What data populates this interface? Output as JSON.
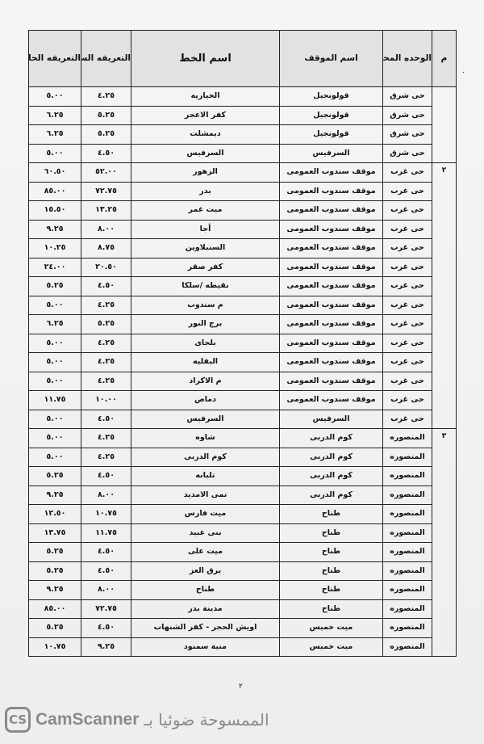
{
  "header": {
    "index": "م",
    "unit": "الوحده المحليه",
    "station": "اسم الموقف",
    "line": "اسم الخط",
    "previous_fare": "التعريفه السابقه",
    "current_fare": "التعريفه الحاليه"
  },
  "groups": [
    {
      "index": "",
      "rows": [
        {
          "unit": "حى شرق",
          "station": "قولونجيل",
          "line": "الخياريه",
          "previous": "٤.٢٥",
          "current": "٥.٠٠"
        },
        {
          "unit": "حى شرق",
          "station": "قولونجيل",
          "line": "كفر الاعجر",
          "previous": "٥.٢٥",
          "current": "٦.٢٥"
        },
        {
          "unit": "حى شرق",
          "station": "قولونجيل",
          "line": "ديمشلت",
          "previous": "٥.٢٥",
          "current": "٦.٢٥"
        },
        {
          "unit": "حى شرق",
          "station": "السرفيس",
          "line": "السرفيس",
          "previous": "٤.٥٠",
          "current": "٥.٠٠"
        }
      ]
    },
    {
      "index": "٢",
      "rows": [
        {
          "unit": "حى غرب",
          "station": "موقف سندوب العمومى",
          "line": "الزهور",
          "previous": "٥٢.٠٠",
          "current": "٦٠.٥٠"
        },
        {
          "unit": "حى غرب",
          "station": "موقف سندوب العمومى",
          "line": "بدر",
          "previous": "٧٢.٧٥",
          "current": "٨٥.٠٠"
        },
        {
          "unit": "حى غرب",
          "station": "موقف سندوب العمومى",
          "line": "ميت غمر",
          "previous": "١٣.٢٥",
          "current": "١٥.٥٠"
        },
        {
          "unit": "حى غرب",
          "station": "موقف سندوب العمومى",
          "line": "أجا",
          "previous": "٨.٠٠",
          "current": "٩.٢٥"
        },
        {
          "unit": "حى غرب",
          "station": "موقف سندوب العمومى",
          "line": "السنبلاوين",
          "previous": "٨.٧٥",
          "current": "١٠.٢٥"
        },
        {
          "unit": "حى غرب",
          "station": "موقف سندوب العمومى",
          "line": "كفر صقر",
          "previous": "٢٠.٥٠",
          "current": "٢٤.٠٠"
        },
        {
          "unit": "حى غرب",
          "station": "موقف سندوب العمومى",
          "line": "نقيطه /سلكا",
          "previous": "٤.٥٠",
          "current": "٥.٢٥"
        },
        {
          "unit": "حى غرب",
          "station": "موقف سندوب العمومى",
          "line": "م سندوب",
          "previous": "٤.٢٥",
          "current": "٥.٠٠"
        },
        {
          "unit": "حى غرب",
          "station": "موقف سندوب العمومى",
          "line": "برج النور",
          "previous": "٥.٢٥",
          "current": "٦.٢٥"
        },
        {
          "unit": "حى غرب",
          "station": "موقف سندوب العمومى",
          "line": "بلجاى",
          "previous": "٤.٢٥",
          "current": "٥.٠٠"
        },
        {
          "unit": "حى غرب",
          "station": "موقف سندوب العمومى",
          "line": "البقليه",
          "previous": "٤.٢٥",
          "current": "٥.٠٠"
        },
        {
          "unit": "حى غرب",
          "station": "موقف سندوب العمومى",
          "line": "م الاكراد",
          "previous": "٤.٢٥",
          "current": "٥.٠٠"
        },
        {
          "unit": "حى غرب",
          "station": "موقف سندوب العمومى",
          "line": "دماص",
          "previous": "١٠.٠٠",
          "current": "١١.٧٥"
        },
        {
          "unit": "حى غرب",
          "station": "السرفيس",
          "line": "السرفيس",
          "previous": "٤.٥٠",
          "current": "٥.٠٠"
        }
      ]
    },
    {
      "index": "٣",
      "rows": [
        {
          "unit": "المنصوره",
          "station": "كوم الدربى",
          "line": "شاوه",
          "previous": "٤.٢٥",
          "current": "٥.٠٠"
        },
        {
          "unit": "المنصوره",
          "station": "كوم الدربى",
          "line": "كوم الدربى",
          "previous": "٤.٢٥",
          "current": "٥.٠٠"
        },
        {
          "unit": "المنصوره",
          "station": "كوم الدربى",
          "line": "تلبانه",
          "previous": "٤.٥٠",
          "current": "٥.٢٥"
        },
        {
          "unit": "المنصوره",
          "station": "كوم الدربى",
          "line": "تمى الامديد",
          "previous": "٨.٠٠",
          "current": "٩.٢٥"
        },
        {
          "unit": "المنصوره",
          "station": "طناح",
          "line": "ميت فارس",
          "previous": "١٠.٧٥",
          "current": "١٢.٥٠"
        },
        {
          "unit": "المنصوره",
          "station": "طناح",
          "line": "بنى عبيد",
          "previous": "١١.٧٥",
          "current": "١٣.٧٥"
        },
        {
          "unit": "المنصوره",
          "station": "طناح",
          "line": "ميت على",
          "previous": "٤.٥٠",
          "current": "٥.٢٥"
        },
        {
          "unit": "المنصوره",
          "station": "طناح",
          "line": "برق العز",
          "previous": "٤.٥٠",
          "current": "٥.٢٥"
        },
        {
          "unit": "المنصوره",
          "station": "طناح",
          "line": "طناح",
          "previous": "٨.٠٠",
          "current": "٩.٢٥"
        },
        {
          "unit": "المنصوره",
          "station": "طناح",
          "line": "مدينة بدر",
          "previous": "٧٢.٧٥",
          "current": "٨٥.٠٠"
        },
        {
          "unit": "المنصوره",
          "station": "ميت خميس",
          "line": "اويش الحجر - كفر الشنهاب",
          "previous": "٤.٥٠",
          "current": "٥.٢٥"
        },
        {
          "unit": "المنصوره",
          "station": "ميت خميس",
          "line": "منية سمنود",
          "previous": "٩.٢٥",
          "current": "١٠.٧٥"
        }
      ]
    }
  ],
  "page_number": "٢",
  "watermark": {
    "logo": "CS",
    "brand": "CamScanner",
    "arabic": "الممسوحة ضوئيا بـ"
  }
}
